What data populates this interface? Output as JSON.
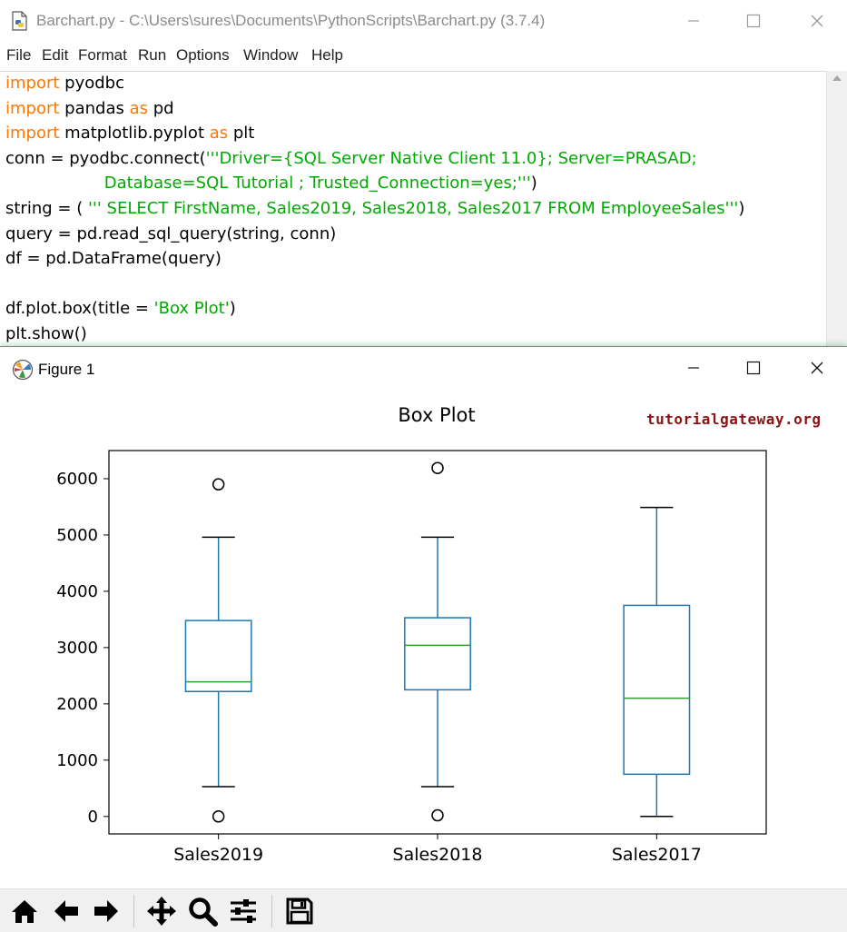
{
  "editor": {
    "title": "Barchart.py - C:\\Users\\sures\\Documents\\PythonScripts\\Barchart.py (3.7.4)",
    "menu": [
      "File",
      "Edit",
      "Format",
      "Run",
      "Options",
      "Window",
      "Help"
    ],
    "code_lines": [
      [
        {
          "t": "import",
          "c": "kw"
        },
        {
          "t": " pyodbc",
          "c": ""
        }
      ],
      [
        {
          "t": "import",
          "c": "kw"
        },
        {
          "t": " pandas ",
          "c": ""
        },
        {
          "t": "as",
          "c": "kw"
        },
        {
          "t": " pd",
          "c": ""
        }
      ],
      [
        {
          "t": "import",
          "c": "kw"
        },
        {
          "t": " matplotlib.pyplot ",
          "c": ""
        },
        {
          "t": "as",
          "c": "kw"
        },
        {
          "t": " plt",
          "c": ""
        }
      ],
      [
        {
          "t": "conn = pyodbc.connect(",
          "c": ""
        },
        {
          "t": "'''Driver={SQL Server Native Client 11.0}; Server=PRASAD;",
          "c": "str"
        }
      ],
      [
        {
          "t": "                   Database=SQL Tutorial ; Trusted_Connection=yes;'''",
          "c": "str"
        },
        {
          "t": ")",
          "c": ""
        }
      ],
      [
        {
          "t": "string = ( ",
          "c": ""
        },
        {
          "t": "''' SELECT FirstName, Sales2019, Sales2018, Sales2017 FROM EmployeeSales'''",
          "c": "str"
        },
        {
          "t": ")",
          "c": ""
        }
      ],
      [
        {
          "t": "query = pd.read_sql_query(string, conn)",
          "c": ""
        }
      ],
      [
        {
          "t": "df = pd.DataFrame(query)",
          "c": ""
        }
      ],
      [
        {
          "t": "",
          "c": ""
        }
      ],
      [
        {
          "t": "df.plot.box(title = ",
          "c": ""
        },
        {
          "t": "'Box Plot'",
          "c": "str"
        },
        {
          "t": ")",
          "c": ""
        }
      ],
      [
        {
          "t": "plt.show()",
          "c": ""
        }
      ]
    ]
  },
  "figure": {
    "title": "Figure 1",
    "watermark": "tutorialgateway.org",
    "toolbar_icons": [
      "home-icon",
      "back-arrow-icon",
      "forward-arrow-icon",
      "pan-icon",
      "zoom-icon",
      "subplots-icon",
      "save-icon"
    ]
  },
  "colors": {
    "keyword": "#ff7700",
    "string": "#00aa00",
    "box": "#1f77b4",
    "median": "#2ca02c"
  },
  "chart_data": {
    "type": "box",
    "title": "Box Plot",
    "categories": [
      "Sales2019",
      "Sales2018",
      "Sales2017"
    ],
    "boxes": [
      {
        "name": "Sales2019",
        "whisker_low": 530,
        "q1": 2220,
        "median": 2390,
        "q3": 3480,
        "whisker_high": 4960,
        "outliers": [
          0,
          5900
        ]
      },
      {
        "name": "Sales2018",
        "whisker_low": 530,
        "q1": 2250,
        "median": 3040,
        "q3": 3530,
        "whisker_high": 4960,
        "outliers": [
          20,
          6190
        ]
      },
      {
        "name": "Sales2017",
        "whisker_low": 0,
        "q1": 750,
        "median": 2100,
        "q3": 3750,
        "whisker_high": 5490,
        "outliers": []
      }
    ],
    "y_ticks": [
      0,
      1000,
      2000,
      3000,
      4000,
      5000,
      6000
    ],
    "ylim": [
      -310,
      6500
    ],
    "xlabel": "",
    "ylabel": "",
    "grid": false,
    "legend": "none"
  }
}
